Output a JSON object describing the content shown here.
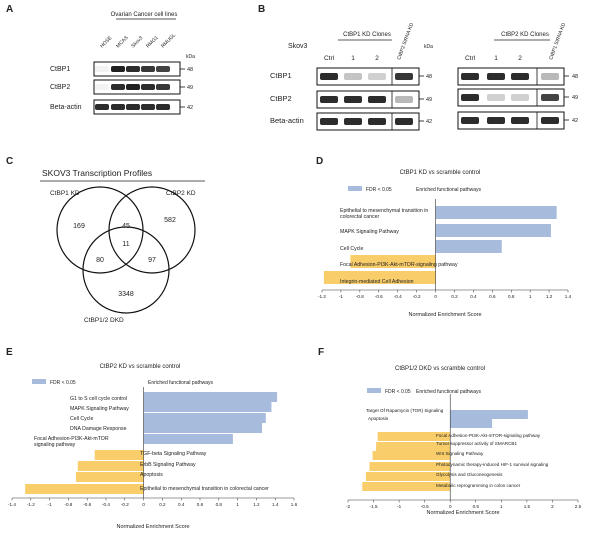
{
  "panels": {
    "A": {
      "letter": "A",
      "group_label": "Ovarian Cancer cell lines",
      "lanes": [
        "HOSE",
        "MCAS",
        "Skov3",
        "RMG1",
        "RMUGL"
      ],
      "unit": "kDa",
      "blots": [
        {
          "label": "CtBP1",
          "kda": "48",
          "bands": [
            0.05,
            0.95,
            0.9,
            0.85,
            0.8
          ]
        },
        {
          "label": "CtBP2",
          "kda": "49",
          "bands": [
            0.05,
            0.9,
            0.95,
            0.9,
            0.85
          ]
        },
        {
          "label": "Beta-actin",
          "kda": "42",
          "bands": [
            0.9,
            0.9,
            0.9,
            0.9,
            0.9
          ]
        }
      ]
    },
    "B": {
      "letter": "B",
      "left": {
        "cell_line": "Skov3",
        "clones_label": "CtBP1 KD Clones",
        "lanes": [
          "Ctrl",
          "1",
          "2"
        ],
        "sirna_label": "CtBP2 SiRNA KD",
        "unit": "kDa",
        "blots": [
          {
            "label": "CtBP1",
            "kda": "48",
            "bands": [
              0.9,
              0.25,
              0.2,
              0.85
            ]
          },
          {
            "label": "CtBP2",
            "kda": "49",
            "bands": [
              0.9,
              0.9,
              0.9,
              0.3
            ]
          },
          {
            "label": "Beta-actin",
            "kda": "42",
            "bands": [
              0.9,
              0.9,
              0.9,
              0.9
            ]
          }
        ]
      },
      "right": {
        "clones_label": "CtBP2 KD Clones",
        "lanes": [
          "Ctrl",
          "1",
          "2"
        ],
        "sirna_label": "CtBP1 SiRNA KD",
        "unit": "kDa",
        "blots": [
          {
            "kda": "48",
            "bands": [
              0.9,
              0.9,
              0.9,
              0.3
            ]
          },
          {
            "kda": "49",
            "bands": [
              0.9,
              0.2,
              0.2,
              0.8
            ]
          },
          {
            "kda": "42",
            "bands": [
              0.9,
              0.9,
              0.9,
              0.9
            ]
          }
        ]
      }
    },
    "C": {
      "letter": "C",
      "title": "SKOV3 Transcription Profiles",
      "sets": [
        "CtBP1 KD",
        "CtBP2 KD",
        "CtBP1/2  DKD"
      ],
      "regions": {
        "only1": "169",
        "only2": "582",
        "only3": "3348",
        "ab": "45",
        "ac": "80",
        "bc": "97",
        "abc": "11"
      }
    },
    "D": {
      "letter": "D"
    },
    "E": {
      "letter": "E"
    },
    "F": {
      "letter": "F"
    }
  },
  "chart_data": [
    {
      "panel": "D",
      "type": "bar",
      "orientation": "horizontal",
      "title": "CtBP1 KD vs scramble control",
      "legend": [
        "FDR < 0.05",
        "Enriched functional pathways"
      ],
      "xlabel": "Normalized Enrichment Score",
      "xlim": [
        -1.2,
        1.4
      ],
      "xticks": [
        -1.2,
        -1,
        -0.8,
        -0.6,
        -0.4,
        -0.2,
        0,
        0.2,
        0.4,
        0.6,
        0.8,
        1,
        1.2,
        1.4
      ],
      "categories": [
        "Epithelial to mesenchymal transition in colorectal cancer",
        "MAPK Signaling Pathway",
        "Cell Cycle",
        "Focal Adhesion-PI3K-Akt-mTOR-signaling pathway",
        "Integrin-mediated Cell Adhesion"
      ],
      "values": [
        1.28,
        1.22,
        0.7,
        -0.9,
        -1.18
      ],
      "colors": {
        "positive": "#a7bcdc",
        "negative": "#f8cd6a"
      }
    },
    {
      "panel": "E",
      "type": "bar",
      "orientation": "horizontal",
      "title": "CtBP2 KD vs scramble control",
      "legend": [
        "FDR < 0.05",
        "Enriched functional pathways"
      ],
      "xlabel": "Normalized Enrichment Score",
      "xlim": [
        -1.4,
        1.6
      ],
      "xticks": [
        -1.4,
        -1.2,
        -1,
        -0.8,
        -0.6,
        -0.4,
        -0.2,
        0,
        0.2,
        0.4,
        0.6,
        0.8,
        1,
        1.2,
        1.4,
        1.6
      ],
      "categories": [
        "G1 to S cell cycle control",
        "MAPK Signaling Pathway",
        "Cell Cycle",
        "DNA Damage Response",
        "Focal Adhesion-PI3K-Akt-mTOR signaling pathway",
        "TGF-beta Signaling Pathway",
        "ErbB Signaling Pathway",
        "Apoptosis",
        "Epithelial to mesenchymal transition in colorectal cancer"
      ],
      "values": [
        1.42,
        1.36,
        1.3,
        1.26,
        0.95,
        -0.52,
        -0.7,
        -0.72,
        -1.26
      ],
      "colors": {
        "positive": "#a7bcdc",
        "negative": "#f8cd6a"
      }
    },
    {
      "panel": "F",
      "type": "bar",
      "orientation": "horizontal",
      "title": "CtBP1/2 DKD vs scramble control",
      "legend": [
        "FDR < 0.05",
        "Enriched functional pathways"
      ],
      "xlabel": "Normalized Enrichment Score",
      "xlim": [
        -2,
        2.5
      ],
      "xticks": [
        -2,
        -1.5,
        -1,
        -0.5,
        0,
        0.5,
        1,
        1.5,
        2,
        2.5
      ],
      "categories": [
        "Target Of Rapamycin (TOR) Signaling",
        "Apoptosis",
        "Focal Adhesion-PI3K-Akt-mTOR-signaling pathway",
        "Tumor suppressor activity of SMARCB1",
        "Wnt Signaling Pathway",
        "Photodynamic therapy-induced HIF-1 survival signaling",
        "Glycolysis and Gluconeogenesis",
        "Metabolic reprogramming in colon cancer"
      ],
      "values": [
        1.52,
        0.82,
        -1.42,
        -1.45,
        -1.52,
        -1.58,
        -1.65,
        -1.72
      ],
      "colors": {
        "positive": "#a7bcdc",
        "negative": "#f8cd6a"
      }
    }
  ]
}
